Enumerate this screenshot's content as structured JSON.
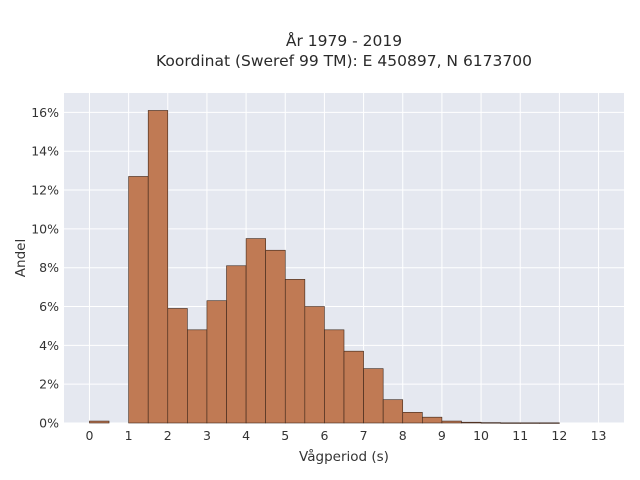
{
  "chart_data": {
    "type": "bar",
    "title_line1": "År 1979 - 2019",
    "title_line2": "Koordinat (Sweref 99 TM): E 450897, N 6173700",
    "xlabel": "Vågperiod (s)",
    "ylabel": "Andel",
    "bin_width": 0.5,
    "bins": [
      {
        "x0": 0.0,
        "value": 0.1
      },
      {
        "x0": 0.5,
        "value": 0.0
      },
      {
        "x0": 1.0,
        "value": 12.7
      },
      {
        "x0": 1.5,
        "value": 16.1
      },
      {
        "x0": 2.0,
        "value": 5.9
      },
      {
        "x0": 2.5,
        "value": 4.8
      },
      {
        "x0": 3.0,
        "value": 6.3
      },
      {
        "x0": 3.5,
        "value": 8.1
      },
      {
        "x0": 4.0,
        "value": 9.5
      },
      {
        "x0": 4.5,
        "value": 8.9
      },
      {
        "x0": 5.0,
        "value": 7.4
      },
      {
        "x0": 5.5,
        "value": 6.0
      },
      {
        "x0": 6.0,
        "value": 4.8
      },
      {
        "x0": 6.5,
        "value": 3.7
      },
      {
        "x0": 7.0,
        "value": 2.8
      },
      {
        "x0": 7.5,
        "value": 1.2
      },
      {
        "x0": 8.0,
        "value": 0.55
      },
      {
        "x0": 8.5,
        "value": 0.3
      },
      {
        "x0": 9.0,
        "value": 0.1
      },
      {
        "x0": 9.5,
        "value": 0.04
      },
      {
        "x0": 10.0,
        "value": 0.02
      },
      {
        "x0": 10.5,
        "value": 0.01
      },
      {
        "x0": 11.0,
        "value": 0.01
      },
      {
        "x0": 11.5,
        "value": 0.01
      }
    ],
    "xlim": [
      -0.65,
      13.65
    ],
    "ylim": [
      0,
      17
    ],
    "xticks": [
      0,
      1,
      2,
      3,
      4,
      5,
      6,
      7,
      8,
      9,
      10,
      11,
      12,
      13
    ],
    "yticks": [
      0,
      2,
      4,
      6,
      8,
      10,
      12,
      14,
      16
    ],
    "ytick_suffix": "%",
    "grid": true,
    "colors": {
      "bar_fill": "#c07a54",
      "bar_edge": "#3a2418",
      "plot_background": "#e5e8f0",
      "grid": "#ffffff"
    }
  }
}
